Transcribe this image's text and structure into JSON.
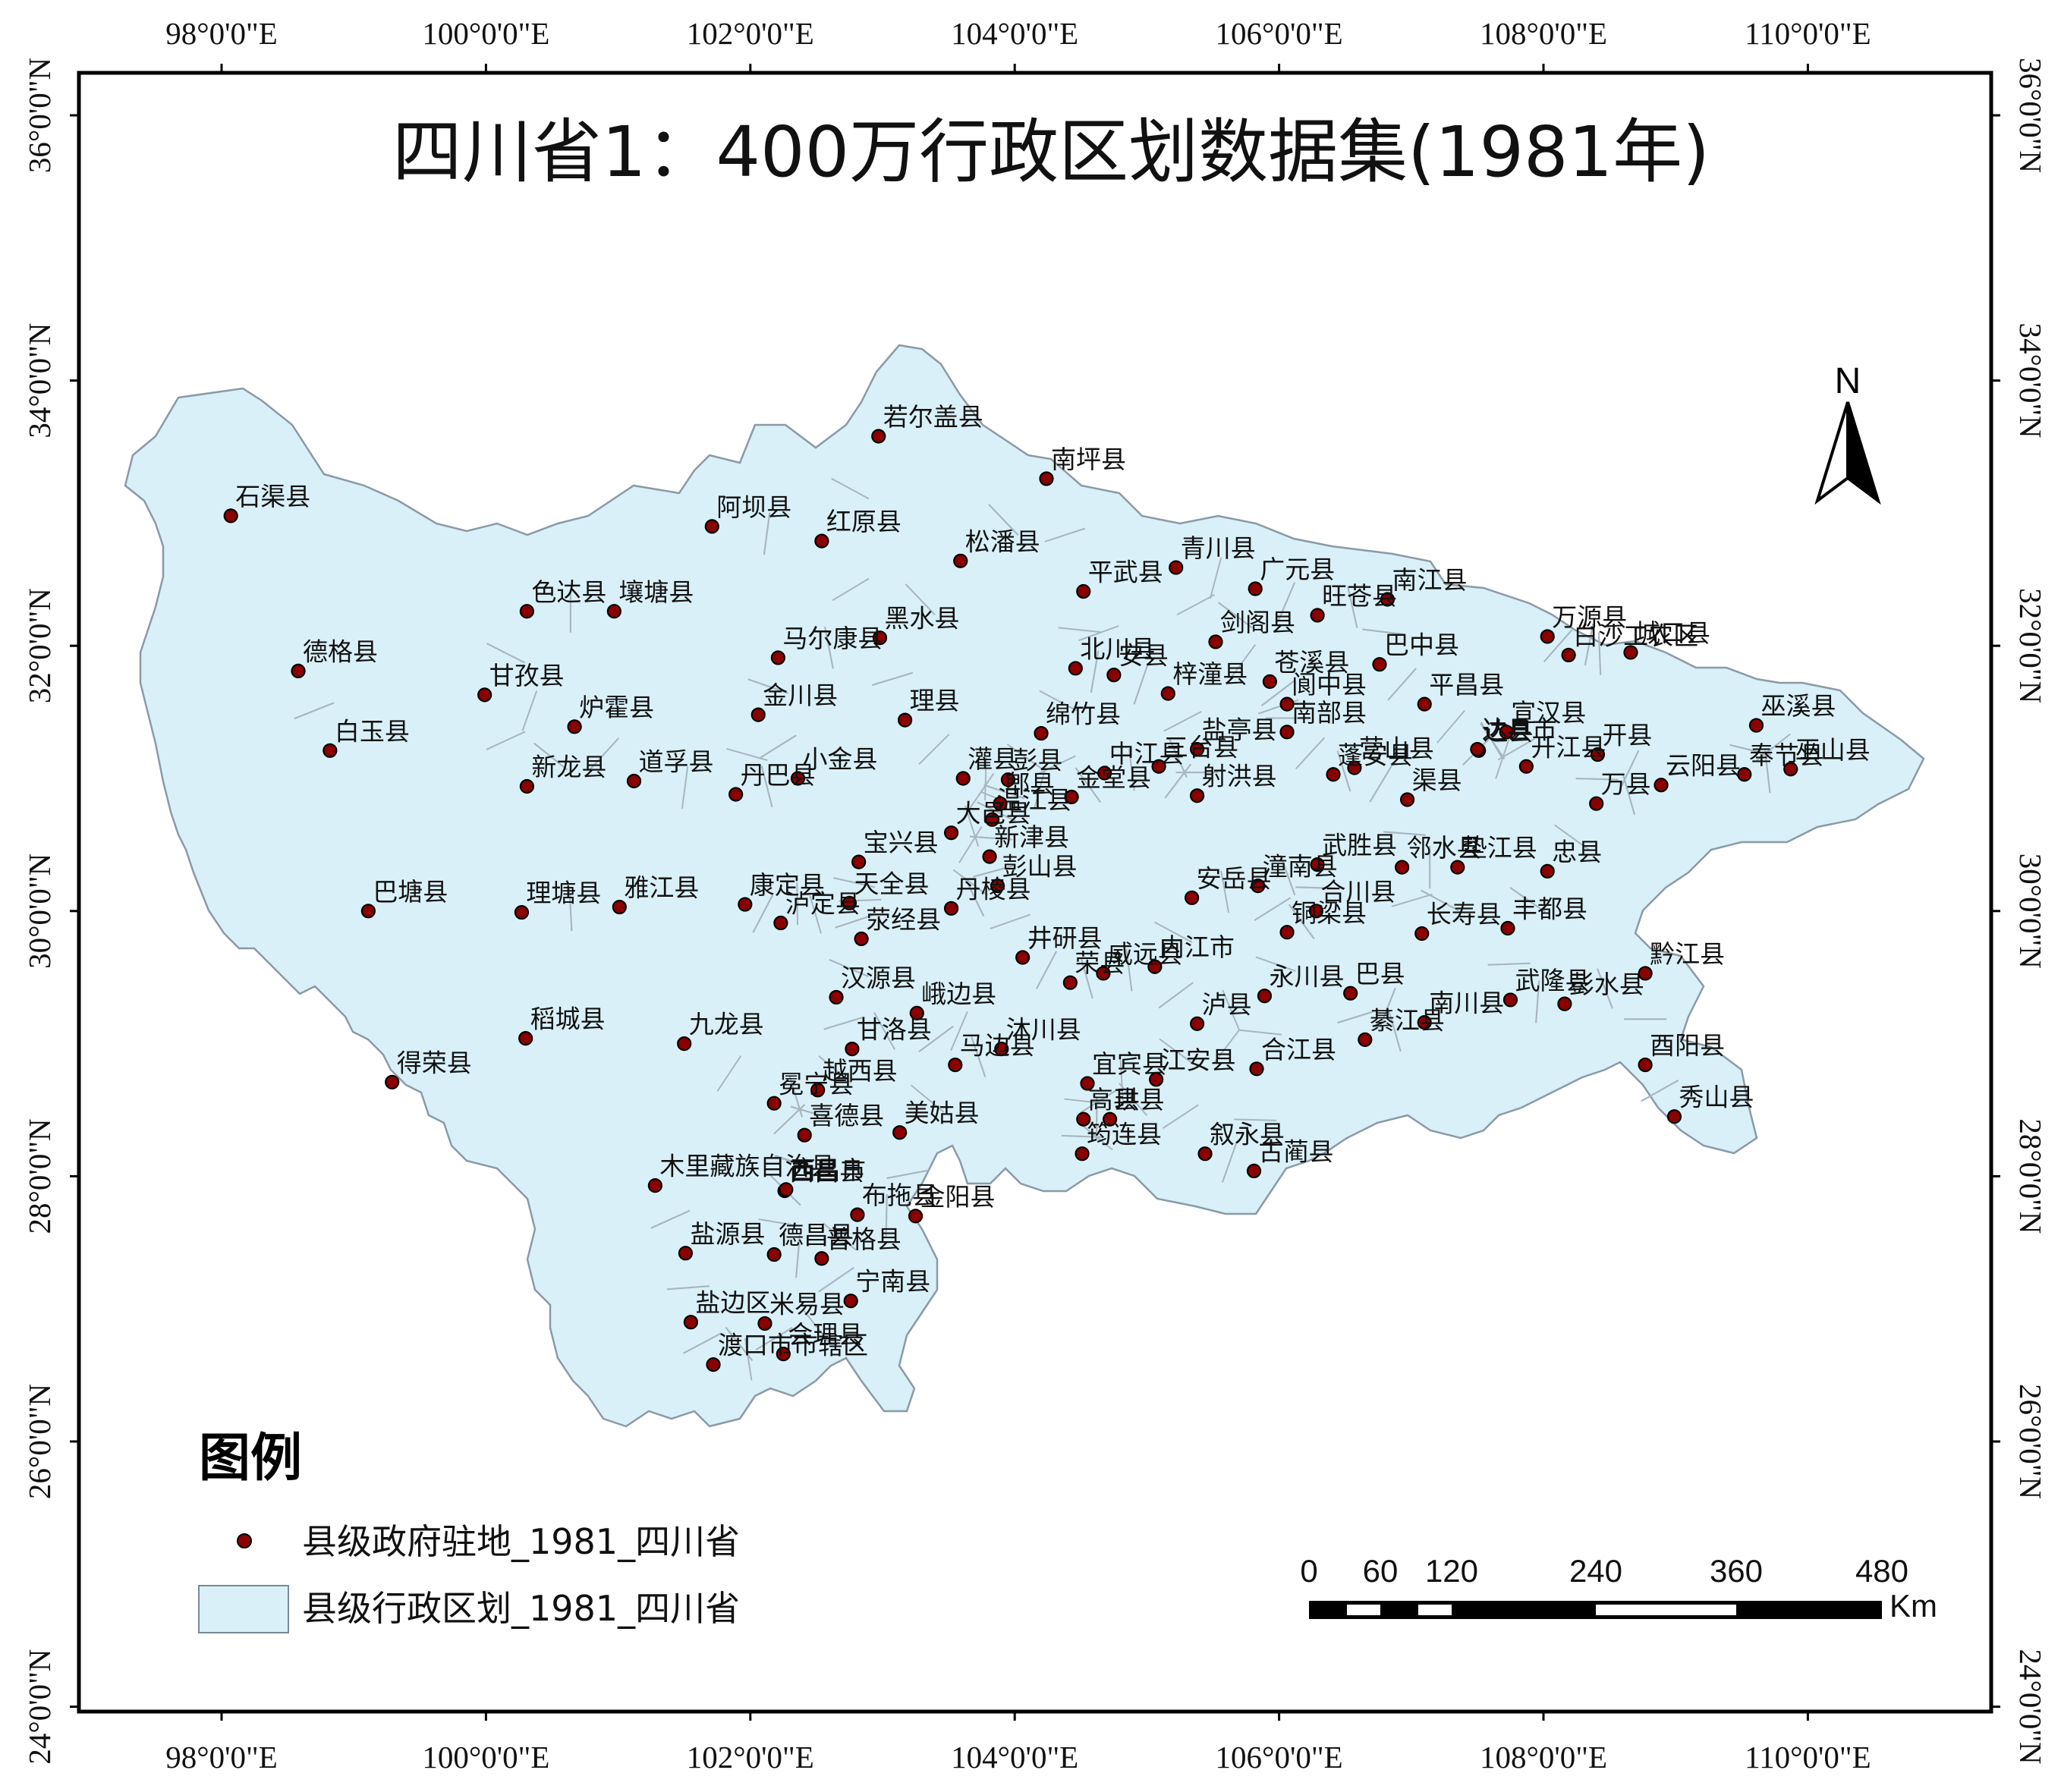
{
  "map": {
    "title": "四川省1：400万行政区划数据集(1981年)",
    "north_label": "N",
    "graticule": {
      "longitudes": [
        {
          "value": 98,
          "label": "98°0'0\"E"
        },
        {
          "value": 100,
          "label": "100°0'0\"E"
        },
        {
          "value": 102,
          "label": "102°0'0\"E"
        },
        {
          "value": 104,
          "label": "104°0'0\"E"
        },
        {
          "value": 106,
          "label": "106°0'0\"E"
        },
        {
          "value": 108,
          "label": "108°0'0\"E"
        },
        {
          "value": 110,
          "label": "110°0'0\"E"
        }
      ],
      "latitudes": [
        {
          "value": 36,
          "label": "36°0'0\"N"
        },
        {
          "value": 34,
          "label": "34°0'0\"N"
        },
        {
          "value": 32,
          "label": "32°0'0\"N"
        },
        {
          "value": 30,
          "label": "30°0'0\"N"
        },
        {
          "value": 28,
          "label": "28°0'0\"N"
        },
        {
          "value": 26,
          "label": "26°0'0\"N"
        },
        {
          "value": 24,
          "label": "24°0'0\"N"
        }
      ]
    },
    "legend": {
      "title": "图例",
      "items": [
        {
          "label": "县级政府驻地_1981_四川省",
          "kind": "point",
          "color": "#8b0000"
        },
        {
          "label": "县级行政区划_1981_四川省",
          "kind": "polygon",
          "color": "#d9f0f8"
        }
      ]
    },
    "scale_bar": {
      "labels": [
        "0",
        "60",
        "120",
        "240",
        "360",
        "480"
      ],
      "unit": "Km"
    },
    "colors": {
      "land_fill": "#d9f0f8",
      "boundary": "#8a9aa6",
      "point_fill": "#8b0000",
      "frame": "#000000"
    },
    "places": [
      {
        "name": "若尔盖县",
        "lon": 102.97,
        "lat": 33.58
      },
      {
        "name": "南坪县",
        "lon": 104.24,
        "lat": 33.26
      },
      {
        "name": "石渠县",
        "lon": 98.07,
        "lat": 32.98
      },
      {
        "name": "阿坝县",
        "lon": 101.71,
        "lat": 32.9
      },
      {
        "name": "红原县",
        "lon": 102.54,
        "lat": 32.79
      },
      {
        "name": "松潘县",
        "lon": 103.59,
        "lat": 32.64
      },
      {
        "name": "平武县",
        "lon": 104.52,
        "lat": 32.41
      },
      {
        "name": "青川县",
        "lon": 105.22,
        "lat": 32.59
      },
      {
        "name": "广元县",
        "lon": 105.82,
        "lat": 32.43
      },
      {
        "name": "南江县",
        "lon": 106.82,
        "lat": 32.35
      },
      {
        "name": "色达县",
        "lon": 100.31,
        "lat": 32.26
      },
      {
        "name": "壤塘县",
        "lon": 100.97,
        "lat": 32.26
      },
      {
        "name": "黑水县",
        "lon": 102.98,
        "lat": 32.06
      },
      {
        "name": "剑阁县",
        "lon": 105.52,
        "lat": 32.03
      },
      {
        "name": "旺苍县",
        "lon": 106.29,
        "lat": 32.23
      },
      {
        "name": "万源县",
        "lon": 108.03,
        "lat": 32.07
      },
      {
        "name": "城口县",
        "lon": 108.66,
        "lat": 31.95
      },
      {
        "name": "马尔康县",
        "lon": 102.21,
        "lat": 31.91
      },
      {
        "name": "北川县",
        "lon": 104.46,
        "lat": 31.83
      },
      {
        "name": "巴中县",
        "lon": 106.76,
        "lat": 31.86
      },
      {
        "name": "白沙工农区",
        "lon": 108.19,
        "lat": 31.93
      },
      {
        "name": "德格县",
        "lon": 98.58,
        "lat": 31.81
      },
      {
        "name": "甘孜县",
        "lon": 99.99,
        "lat": 31.63
      },
      {
        "name": "安县",
        "lon": 104.75,
        "lat": 31.78
      },
      {
        "name": "梓潼县",
        "lon": 105.16,
        "lat": 31.64
      },
      {
        "name": "苍溪县",
        "lon": 105.93,
        "lat": 31.73
      },
      {
        "name": "平昌县",
        "lon": 107.1,
        "lat": 31.56
      },
      {
        "name": "巫溪县",
        "lon": 109.61,
        "lat": 31.4
      },
      {
        "name": "炉霍县",
        "lon": 100.67,
        "lat": 31.39
      },
      {
        "name": "金川县",
        "lon": 102.06,
        "lat": 31.48
      },
      {
        "name": "理县",
        "lon": 103.17,
        "lat": 31.44
      },
      {
        "name": "绵竹县",
        "lon": 104.2,
        "lat": 31.34
      },
      {
        "name": "盐亭县",
        "lon": 105.38,
        "lat": 31.22
      },
      {
        "name": "阆中县",
        "lon": 106.06,
        "lat": 31.56
      },
      {
        "name": "达县",
        "lon": 107.51,
        "lat": 31.21
      },
      {
        "name": "宣汉县",
        "lon": 107.72,
        "lat": 31.35
      },
      {
        "name": "开县",
        "lon": 108.41,
        "lat": 31.18
      },
      {
        "name": "巫山县",
        "lon": 109.87,
        "lat": 31.07
      },
      {
        "name": "白玉县",
        "lon": 98.82,
        "lat": 31.21
      },
      {
        "name": "新龙县",
        "lon": 100.31,
        "lat": 30.94
      },
      {
        "name": "道孚县",
        "lon": 101.12,
        "lat": 30.98
      },
      {
        "name": "小金县",
        "lon": 102.36,
        "lat": 31.0
      },
      {
        "name": "灌县",
        "lon": 103.61,
        "lat": 31.0
      },
      {
        "name": "彭县",
        "lon": 103.95,
        "lat": 30.99
      },
      {
        "name": "中江县",
        "lon": 104.68,
        "lat": 31.04
      },
      {
        "name": "三台县",
        "lon": 105.09,
        "lat": 31.09
      },
      {
        "name": "南部县",
        "lon": 106.06,
        "lat": 31.35
      },
      {
        "name": "达县市",
        "lon": 107.5,
        "lat": 31.22
      },
      {
        "name": "云阳县",
        "lon": 108.89,
        "lat": 30.95
      },
      {
        "name": "奉节县",
        "lon": 109.52,
        "lat": 31.03
      },
      {
        "name": "丹巴县",
        "lon": 101.89,
        "lat": 30.88
      },
      {
        "name": "温江县",
        "lon": 103.83,
        "lat": 30.69
      },
      {
        "name": "郫县",
        "lon": 103.89,
        "lat": 30.81
      },
      {
        "name": "射洪县",
        "lon": 105.38,
        "lat": 30.87
      },
      {
        "name": "蓬安县",
        "lon": 106.41,
        "lat": 31.03
      },
      {
        "name": "营山县",
        "lon": 106.57,
        "lat": 31.08
      },
      {
        "name": "渠县",
        "lon": 106.97,
        "lat": 30.84
      },
      {
        "name": "开江县",
        "lon": 107.87,
        "lat": 31.09
      },
      {
        "name": "万县",
        "lon": 108.4,
        "lat": 30.81
      },
      {
        "name": "宝兴县",
        "lon": 102.82,
        "lat": 30.37
      },
      {
        "name": "大邑县",
        "lon": 103.52,
        "lat": 30.59
      },
      {
        "name": "金堂县",
        "lon": 104.43,
        "lat": 30.86
      },
      {
        "name": "武胜县",
        "lon": 106.29,
        "lat": 30.35
      },
      {
        "name": "邻水县",
        "lon": 106.93,
        "lat": 30.33
      },
      {
        "name": "忠县",
        "lon": 108.03,
        "lat": 30.3
      },
      {
        "name": "巴塘县",
        "lon": 99.11,
        "lat": 30.0
      },
      {
        "name": "理塘县",
        "lon": 100.27,
        "lat": 29.99
      },
      {
        "name": "雅江县",
        "lon": 101.01,
        "lat": 30.03
      },
      {
        "name": "泸定县",
        "lon": 102.23,
        "lat": 29.91
      },
      {
        "name": "天全县",
        "lon": 102.75,
        "lat": 30.06
      },
      {
        "name": "新津县",
        "lon": 103.81,
        "lat": 30.41
      },
      {
        "name": "安岳县",
        "lon": 105.34,
        "lat": 30.1
      },
      {
        "name": "潼南县",
        "lon": 105.84,
        "lat": 30.19
      },
      {
        "name": "垫江县",
        "lon": 107.35,
        "lat": 30.33
      },
      {
        "name": "康定县",
        "lon": 101.96,
        "lat": 30.05
      },
      {
        "name": "彭山县",
        "lon": 103.87,
        "lat": 30.19
      },
      {
        "name": "合川县",
        "lon": 106.28,
        "lat": 30.0
      },
      {
        "name": "长寿县",
        "lon": 107.08,
        "lat": 29.83
      },
      {
        "name": "丰都县",
        "lon": 107.73,
        "lat": 29.87
      },
      {
        "name": "丹棱县",
        "lon": 103.52,
        "lat": 30.02
      },
      {
        "name": "内江市",
        "lon": 105.06,
        "lat": 29.58
      },
      {
        "name": "荥经县",
        "lon": 102.84,
        "lat": 29.79
      },
      {
        "name": "汉源县",
        "lon": 102.65,
        "lat": 29.35
      },
      {
        "name": "井研县",
        "lon": 104.06,
        "lat": 29.65
      },
      {
        "name": "荣县",
        "lon": 104.42,
        "lat": 29.46
      },
      {
        "name": "铜梁县",
        "lon": 106.06,
        "lat": 29.84
      },
      {
        "name": "巴县",
        "lon": 106.54,
        "lat": 29.38
      },
      {
        "name": "武隆县",
        "lon": 107.75,
        "lat": 29.33
      },
      {
        "name": "彭水县",
        "lon": 108.16,
        "lat": 29.3
      },
      {
        "name": "黔江县",
        "lon": 108.77,
        "lat": 29.53
      },
      {
        "name": "稻城县",
        "lon": 100.3,
        "lat": 29.04
      },
      {
        "name": "九龙县",
        "lon": 101.5,
        "lat": 29.0
      },
      {
        "name": "甘洛县",
        "lon": 102.77,
        "lat": 28.96
      },
      {
        "name": "峨边县",
        "lon": 103.26,
        "lat": 29.23
      },
      {
        "name": "威远县",
        "lon": 104.67,
        "lat": 29.53
      },
      {
        "name": "泸县",
        "lon": 105.38,
        "lat": 29.15
      },
      {
        "name": "永川县",
        "lon": 105.89,
        "lat": 29.36
      },
      {
        "name": "南川县",
        "lon": 107.1,
        "lat": 29.16
      },
      {
        "name": "合江县",
        "lon": 105.83,
        "lat": 28.81
      },
      {
        "name": "綦江县",
        "lon": 106.65,
        "lat": 29.03
      },
      {
        "name": "酉阳县",
        "lon": 108.77,
        "lat": 28.84
      },
      {
        "name": "得荣县",
        "lon": 99.29,
        "lat": 28.71
      },
      {
        "name": "沐川县",
        "lon": 103.9,
        "lat": 28.96
      },
      {
        "name": "宜宾县",
        "lon": 104.55,
        "lat": 28.7
      },
      {
        "name": "冕宁县",
        "lon": 102.18,
        "lat": 28.55
      },
      {
        "name": "马边县",
        "lon": 103.55,
        "lat": 28.84
      },
      {
        "name": "高县",
        "lon": 104.52,
        "lat": 28.43
      },
      {
        "name": "江安县",
        "lon": 105.07,
        "lat": 28.73
      },
      {
        "name": "秀山县",
        "lon": 108.99,
        "lat": 28.45
      },
      {
        "name": "喜德县",
        "lon": 102.41,
        "lat": 28.31
      },
      {
        "name": "越西县",
        "lon": 102.51,
        "lat": 28.65
      },
      {
        "name": "筠连县",
        "lon": 104.51,
        "lat": 28.17
      },
      {
        "name": "珙县",
        "lon": 104.72,
        "lat": 28.43
      },
      {
        "name": "叙永县",
        "lon": 105.44,
        "lat": 28.17
      },
      {
        "name": "美姑县",
        "lon": 103.13,
        "lat": 28.33
      },
      {
        "name": "木里藏族自治县",
        "lon": 101.28,
        "lat": 27.93
      },
      {
        "name": "西昌县",
        "lon": 102.26,
        "lat": 27.89
      },
      {
        "name": "西昌市",
        "lon": 102.27,
        "lat": 27.9
      },
      {
        "name": "古蔺县",
        "lon": 105.81,
        "lat": 28.04
      },
      {
        "name": "布拖县",
        "lon": 102.81,
        "lat": 27.71
      },
      {
        "name": "盐源县",
        "lon": 101.51,
        "lat": 27.42
      },
      {
        "name": "普格县",
        "lon": 102.54,
        "lat": 27.38
      },
      {
        "name": "金阳县",
        "lon": 103.25,
        "lat": 27.7
      },
      {
        "name": "德昌县",
        "lon": 102.18,
        "lat": 27.41
      },
      {
        "name": "宁南县",
        "lon": 102.76,
        "lat": 27.06
      },
      {
        "name": "盐边区",
        "lon": 101.55,
        "lat": 26.9
      },
      {
        "name": "米易县",
        "lon": 102.11,
        "lat": 26.89
      },
      {
        "name": "渡口市市辖区",
        "lon": 101.72,
        "lat": 26.58
      },
      {
        "name": "会理县",
        "lon": 102.25,
        "lat": 26.66
      }
    ]
  }
}
